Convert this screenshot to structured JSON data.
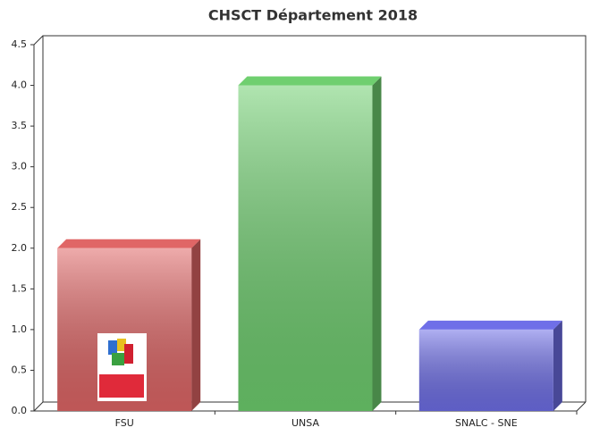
{
  "chart_data": {
    "type": "bar3d",
    "title": "CHSCT Département 2018",
    "categories": [
      "FSU",
      "UNSA",
      "SNALC - SNE"
    ],
    "values": [
      2,
      4,
      1
    ],
    "colors": [
      "#e06666",
      "#6fcf6f",
      "#6f6fe8"
    ],
    "ylim": [
      0,
      4.5
    ],
    "yticks": [
      {
        "value": 0,
        "label": "0.0"
      },
      0.5,
      {
        "value": 1,
        "label": "1.0"
      },
      1.5,
      {
        "value": 2,
        "label": "2.0"
      },
      2.5,
      {
        "value": 3,
        "label": "3.0"
      },
      3.5,
      {
        "value": 4,
        "label": "4.0"
      },
      4.5
    ],
    "grid": false
  }
}
